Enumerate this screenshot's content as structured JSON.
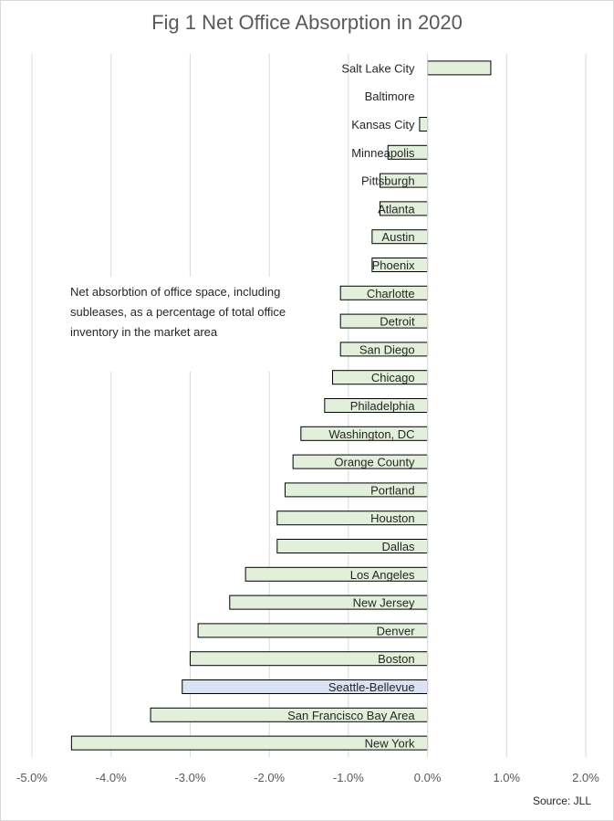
{
  "chart_data": {
    "type": "bar",
    "orientation": "horizontal",
    "title": "Fig 1 Net Office Absorption in 2020",
    "categories": [
      "Salt Lake City",
      "Baltimore",
      "Kansas City",
      "Minneapolis",
      "Pittsburgh",
      "Atlanta",
      "Austin",
      "Phoenix",
      "Charlotte",
      "Detroit",
      "San Diego",
      "Chicago",
      "Philadelphia",
      "Washington, DC",
      "Orange County",
      "Portland",
      "Houston",
      "Dallas",
      "Los Angeles",
      "New Jersey",
      "Denver",
      "Boston",
      "Seattle-Bellevue",
      "San Francisco Bay Area",
      "New York"
    ],
    "values": [
      0.8,
      0.0,
      -0.1,
      -0.5,
      -0.6,
      -0.6,
      -0.7,
      -0.7,
      -1.1,
      -1.1,
      -1.1,
      -1.2,
      -1.3,
      -1.6,
      -1.7,
      -1.8,
      -1.9,
      -1.9,
      -2.3,
      -2.5,
      -2.9,
      -3.0,
      -3.1,
      -3.5,
      -4.5
    ],
    "highlight": "Seattle-Bellevue",
    "bar_color": "#e2efda",
    "highlight_color": "#dae3f3",
    "bar_border": "#000000",
    "xlim": [
      -5,
      2
    ],
    "xticks": [
      -5,
      -4,
      -3,
      -2,
      -1,
      0,
      1,
      2
    ],
    "xtick_labels": [
      "-5.0%",
      "-4.0%",
      "-3.0%",
      "-2.0%",
      "-1.0%",
      "0.0%",
      "1.0%",
      "2.0%"
    ],
    "grid": "vertical",
    "gridline_color": "#d9d9d9",
    "annotation": "Net absorbtion of office space, including subleases, as a percentage of total office inventory in the market area",
    "source": "Source: JLL"
  }
}
